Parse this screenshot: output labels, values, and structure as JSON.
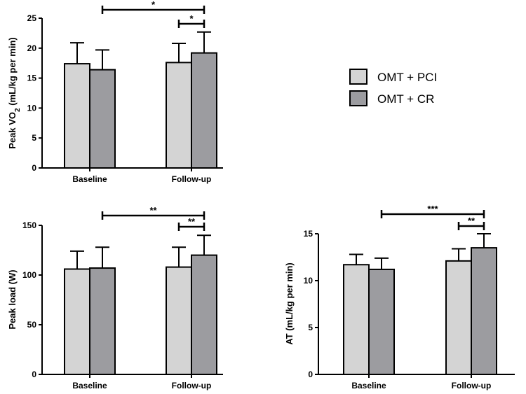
{
  "colors": {
    "series1": "#d4d4d4",
    "series2": "#9c9ca0",
    "axis": "#000000"
  },
  "legend": [
    {
      "name": "OMT + PCI",
      "color": "#d4d4d4"
    },
    {
      "name": "OMT + CR",
      "color": "#9c9ca0"
    }
  ],
  "chart_data": [
    {
      "type": "bar",
      "ylabel_main": "Peak VO",
      "ylabel_sub": "2",
      "ylabel_rest": " (mL/kg per min)",
      "ylim": [
        0,
        25
      ],
      "yticks": [
        "0",
        "5",
        "10",
        "15",
        "20",
        "25"
      ],
      "categories": [
        "Baseline",
        "Follow-up"
      ],
      "series": [
        {
          "name": "OMT + PCI",
          "values": [
            17.4,
            17.6
          ],
          "errors": [
            3.5,
            3.2
          ]
        },
        {
          "name": "OMT + CR",
          "values": [
            16.4,
            19.2
          ],
          "errors": [
            3.3,
            3.5
          ]
        }
      ],
      "significance": [
        {
          "label": "*",
          "from": "Baseline",
          "to": "Follow-up · OMT + CR"
        },
        {
          "label": "*",
          "from": "Follow-up · OMT + PCI",
          "to": "Follow-up · OMT + CR"
        }
      ]
    },
    {
      "type": "bar",
      "ylabel": "Peak load (W)",
      "ylim": [
        0,
        150
      ],
      "yticks": [
        "0",
        "50",
        "100",
        "150"
      ],
      "categories": [
        "Baseline",
        "Follow-up"
      ],
      "series": [
        {
          "name": "OMT + PCI",
          "values": [
            106,
            108
          ],
          "errors": [
            18,
            20
          ]
        },
        {
          "name": "OMT + CR",
          "values": [
            107,
            120
          ],
          "errors": [
            21,
            20
          ]
        }
      ],
      "significance": [
        {
          "label": "**",
          "from": "Baseline",
          "to": "Follow-up · OMT + CR"
        },
        {
          "label": "**",
          "from": "Follow-up · OMT + PCI",
          "to": "Follow-up · OMT + CR"
        }
      ]
    },
    {
      "type": "bar",
      "ylabel": "AT (mL/kg per min)",
      "ylim": [
        0,
        15
      ],
      "yticks": [
        "0",
        "5",
        "10",
        "15"
      ],
      "categories": [
        "Baseline",
        "Follow-up"
      ],
      "series": [
        {
          "name": "OMT + PCI",
          "values": [
            11.7,
            12.1
          ],
          "errors": [
            1.1,
            1.3
          ]
        },
        {
          "name": "OMT + CR",
          "values": [
            11.2,
            13.5
          ],
          "errors": [
            1.2,
            1.5
          ]
        }
      ],
      "significance": [
        {
          "label": "***",
          "from": "Baseline",
          "to": "Follow-up · OMT + CR"
        },
        {
          "label": "**",
          "from": "Follow-up · OMT + PCI",
          "to": "Follow-up · OMT + CR"
        }
      ]
    }
  ]
}
